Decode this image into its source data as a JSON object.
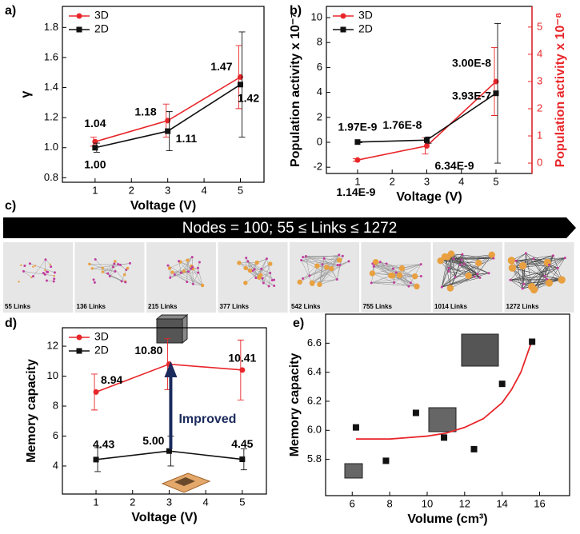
{
  "chart_data": [
    {
      "type": "line",
      "panel_label": "a)",
      "x_label": "Voltage (V)",
      "y_label": "γ",
      "x": [
        1,
        3,
        5
      ],
      "series": [
        {
          "name": "3D",
          "color": "#e8262a",
          "marker": "circle",
          "values": [
            1.04,
            1.18,
            1.47
          ],
          "errors": [
            0.03,
            0.11,
            0.21
          ],
          "value_labels": [
            "1.04",
            "1.18",
            "1.47"
          ]
        },
        {
          "name": "2D",
          "color": "#111111",
          "marker": "square",
          "values": [
            1.0,
            1.11,
            1.42
          ],
          "errors": [
            0.03,
            0.13,
            0.35
          ],
          "value_labels": [
            "1.00",
            "1.11",
            "1.42"
          ]
        }
      ],
      "xlim": [
        0.1,
        5.65
      ],
      "xticks": [
        1,
        2,
        3,
        4,
        5
      ],
      "ylim": [
        0.77,
        1.94
      ],
      "yticks": [
        0.8,
        {
          "value": 1,
          "label": "1.0"
        },
        1.2,
        1.4,
        1.6,
        1.8
      ],
      "legend": "upper left"
    },
    {
      "type": "line",
      "panel_label": "b)",
      "x_label": "Voltage (V)",
      "y_label": "Population activity x 10⁻⁷",
      "y2_label": "Population activity x 10⁻⁸",
      "y2_color": "#e8262a",
      "x": [
        1,
        3,
        5
      ],
      "series": [
        {
          "name": "3D",
          "color": "#e8262a",
          "marker": "circle",
          "axis": "y2",
          "values": [
            0.114,
            0.634,
            3.0
          ],
          "errors": [
            0.05,
            0.3,
            1.25
          ],
          "value_labels": [
            "1.14E-9",
            "6.34E-9",
            "3.00E-8"
          ]
        },
        {
          "name": "2D",
          "color": "#111111",
          "marker": "square",
          "values": [
            0.0197,
            0.176,
            3.93
          ],
          "errors": [
            0.05,
            0.25,
            5.6
          ],
          "value_labels": [
            "1.97E-9",
            "1.76E-8",
            "3.93E-7"
          ]
        }
      ],
      "xlim": [
        0.1,
        6.04
      ],
      "xticks": [
        1,
        2,
        3,
        4,
        5
      ],
      "ylim": [
        -2.5,
        10.9
      ],
      "yticks": [
        -2,
        0,
        2,
        4,
        6,
        8,
        10
      ],
      "y2lim": [
        -0.38,
        5.76
      ],
      "y2ticks": [
        0,
        1,
        2,
        3,
        4,
        5
      ],
      "legend": "upper left"
    },
    {
      "type": "line",
      "panel_label": "d)",
      "x_label": "Voltage (V)",
      "y_label": "Memory capacity",
      "annotation": "Improved",
      "x": [
        1,
        3,
        5
      ],
      "series": [
        {
          "name": "3D",
          "color": "#e8262a",
          "marker": "circle",
          "values": [
            8.94,
            10.8,
            10.41
          ],
          "errors": [
            1.2,
            1.7,
            2.0
          ],
          "value_labels": [
            "8.94",
            "10.80",
            "10.41"
          ]
        },
        {
          "name": "2D",
          "color": "#111111",
          "marker": "square",
          "values": [
            4.43,
            5.0,
            4.45
          ],
          "errors": [
            0.8,
            1.0,
            0.7
          ],
          "value_labels": [
            "4.43",
            "5.00",
            "4.45"
          ]
        }
      ],
      "xlim": [
        0.08,
        5.66
      ],
      "xticks": [
        1,
        2,
        3,
        4,
        5
      ],
      "ylim": [
        2.13,
        13.23
      ],
      "yticks": [
        4,
        6,
        8,
        10,
        12
      ],
      "legend": "upper left"
    },
    {
      "type": "scatter",
      "panel_label": "e)",
      "x_label": "Volume (cm³)",
      "y_label": "Memory capacity",
      "x": [
        6.2,
        7.8,
        9.4,
        10.9,
        12.5,
        14.0,
        15.6
      ],
      "values": [
        6.02,
        5.79,
        6.12,
        5.95,
        5.87,
        6.32,
        6.61
      ],
      "color": "#111111",
      "fit": {
        "color": "#e8262a",
        "x": [
          6.2,
          8,
          9,
          10,
          11,
          12,
          13,
          14,
          14.5,
          15,
          15.6
        ],
        "values": [
          5.94,
          5.94,
          5.95,
          5.96,
          5.98,
          6.02,
          6.08,
          6.19,
          6.28,
          6.4,
          6.62
        ]
      },
      "xlim": [
        4.58,
        17.6
      ],
      "xticks": [
        6,
        8,
        10,
        12,
        14,
        16
      ],
      "ylim": [
        5.55,
        6.8
      ],
      "yticks": [
        5.8,
        {
          "value": 6,
          "label": "6.0"
        },
        6.2,
        6.4,
        6.6
      ]
    }
  ],
  "banner": {
    "panel_label": "c)",
    "title": "Nodes = 100; 55 ≤ Links ≤ 1272",
    "thumbnails": [
      "55 Links",
      "136 Links",
      "215 Links",
      "377 Links",
      "542 Links",
      "755 Links",
      "1014 Links",
      "1272 Links"
    ]
  }
}
